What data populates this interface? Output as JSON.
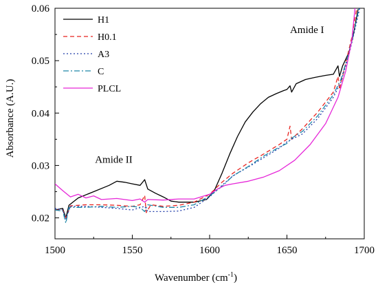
{
  "chart_data": {
    "type": "line",
    "xlabel": "Wavenumber (cm",
    "xlabel_sup": "-1",
    "xlabel_close": ")",
    "ylabel": "Absorbance (A.U.)",
    "xlim": [
      1500,
      1700
    ],
    "ylim": [
      0.016,
      0.06
    ],
    "xticks": [
      1500,
      1550,
      1600,
      1650,
      1700
    ],
    "xtick_labels": [
      "1500",
      "1550",
      "1600",
      "1650",
      "1700"
    ],
    "yticks": [
      0.02,
      0.03,
      0.04,
      0.05,
      0.06
    ],
    "ytick_labels": [
      "0.02",
      "0.03",
      "0.04",
      "0.05",
      "0.06"
    ],
    "legend_position": "top-left",
    "annotations": [
      {
        "text": "Amide II",
        "x": 1538,
        "y": 0.0305
      },
      {
        "text": "Amide I",
        "x": 1663,
        "y": 0.0553
      }
    ],
    "series": [
      {
        "name": "H1",
        "color": "#000000",
        "dash": "solid",
        "points": [
          [
            1500,
            0.0215
          ],
          [
            1505,
            0.0218
          ],
          [
            1507,
            0.02
          ],
          [
            1509,
            0.0224
          ],
          [
            1515,
            0.0238
          ],
          [
            1525,
            0.025
          ],
          [
            1535,
            0.0262
          ],
          [
            1540,
            0.027
          ],
          [
            1545,
            0.0268
          ],
          [
            1550,
            0.0265
          ],
          [
            1555,
            0.0262
          ],
          [
            1558,
            0.0273
          ],
          [
            1560,
            0.0255
          ],
          [
            1565,
            0.0247
          ],
          [
            1570,
            0.024
          ],
          [
            1575,
            0.0232
          ],
          [
            1580,
            0.023
          ],
          [
            1590,
            0.023
          ],
          [
            1598,
            0.0235
          ],
          [
            1603,
            0.0252
          ],
          [
            1608,
            0.0285
          ],
          [
            1613,
            0.0322
          ],
          [
            1618,
            0.0355
          ],
          [
            1623,
            0.0383
          ],
          [
            1628,
            0.0402
          ],
          [
            1633,
            0.0418
          ],
          [
            1638,
            0.043
          ],
          [
            1643,
            0.0437
          ],
          [
            1648,
            0.0443
          ],
          [
            1650,
            0.0445
          ],
          [
            1652,
            0.0452
          ],
          [
            1653,
            0.044
          ],
          [
            1656,
            0.0456
          ],
          [
            1662,
            0.0464
          ],
          [
            1668,
            0.0468
          ],
          [
            1675,
            0.0472
          ],
          [
            1680,
            0.0474
          ],
          [
            1683,
            0.049
          ],
          [
            1684,
            0.047
          ],
          [
            1686,
            0.049
          ],
          [
            1690,
            0.0515
          ],
          [
            1693,
            0.055
          ],
          [
            1696,
            0.0598
          ]
        ]
      },
      {
        "name": "H0.1",
        "color": "#e8231f",
        "dash": "6,4",
        "points": [
          [
            1500,
            0.0215
          ],
          [
            1505,
            0.0215
          ],
          [
            1507,
            0.02
          ],
          [
            1510,
            0.0223
          ],
          [
            1520,
            0.0225
          ],
          [
            1530,
            0.0225
          ],
          [
            1540,
            0.0224
          ],
          [
            1550,
            0.0222
          ],
          [
            1555,
            0.0225
          ],
          [
            1558,
            0.0243
          ],
          [
            1559,
            0.021
          ],
          [
            1562,
            0.0225
          ],
          [
            1570,
            0.0222
          ],
          [
            1580,
            0.0224
          ],
          [
            1590,
            0.023
          ],
          [
            1600,
            0.0245
          ],
          [
            1608,
            0.0268
          ],
          [
            1615,
            0.0285
          ],
          [
            1625,
            0.0305
          ],
          [
            1635,
            0.0322
          ],
          [
            1645,
            0.034
          ],
          [
            1650,
            0.035
          ],
          [
            1652,
            0.0375
          ],
          [
            1653,
            0.035
          ],
          [
            1660,
            0.037
          ],
          [
            1670,
            0.0402
          ],
          [
            1680,
            0.044
          ],
          [
            1683,
            0.047
          ],
          [
            1684,
            0.0445
          ],
          [
            1688,
            0.0495
          ],
          [
            1692,
            0.0545
          ],
          [
            1695,
            0.0598
          ]
        ]
      },
      {
        "name": "A3",
        "color": "#1e3aa8",
        "dash": "2,3",
        "points": [
          [
            1500,
            0.0218
          ],
          [
            1505,
            0.0215
          ],
          [
            1507,
            0.0198
          ],
          [
            1510,
            0.0222
          ],
          [
            1520,
            0.0222
          ],
          [
            1530,
            0.022
          ],
          [
            1540,
            0.0218
          ],
          [
            1550,
            0.0215
          ],
          [
            1558,
            0.0222
          ],
          [
            1560,
            0.0212
          ],
          [
            1565,
            0.0212
          ],
          [
            1570,
            0.0212
          ],
          [
            1580,
            0.0213
          ],
          [
            1590,
            0.022
          ],
          [
            1600,
            0.024
          ],
          [
            1608,
            0.0262
          ],
          [
            1615,
            0.028
          ],
          [
            1625,
            0.0297
          ],
          [
            1635,
            0.0315
          ],
          [
            1645,
            0.0333
          ],
          [
            1650,
            0.0345
          ],
          [
            1653,
            0.035
          ],
          [
            1660,
            0.036
          ],
          [
            1670,
            0.039
          ],
          [
            1680,
            0.043
          ],
          [
            1685,
            0.046
          ],
          [
            1690,
            0.051
          ],
          [
            1694,
            0.056
          ],
          [
            1697,
            0.06
          ]
        ]
      },
      {
        "name": "C",
        "color": "#1f86a8",
        "dash": "8,3,2,3",
        "points": [
          [
            1500,
            0.0215
          ],
          [
            1505,
            0.0213
          ],
          [
            1507,
            0.019
          ],
          [
            1509,
            0.022
          ],
          [
            1520,
            0.022
          ],
          [
            1530,
            0.0222
          ],
          [
            1540,
            0.022
          ],
          [
            1550,
            0.0222
          ],
          [
            1555,
            0.022
          ],
          [
            1558,
            0.0212
          ],
          [
            1560,
            0.0225
          ],
          [
            1570,
            0.022
          ],
          [
            1580,
            0.022
          ],
          [
            1590,
            0.0225
          ],
          [
            1600,
            0.0242
          ],
          [
            1608,
            0.026
          ],
          [
            1615,
            0.028
          ],
          [
            1625,
            0.0298
          ],
          [
            1635,
            0.0318
          ],
          [
            1645,
            0.0335
          ],
          [
            1650,
            0.0342
          ],
          [
            1653,
            0.0352
          ],
          [
            1660,
            0.0365
          ],
          [
            1670,
            0.0395
          ],
          [
            1680,
            0.0435
          ],
          [
            1685,
            0.0465
          ],
          [
            1690,
            0.0515
          ],
          [
            1694,
            0.0565
          ],
          [
            1697,
            0.0605
          ]
        ]
      },
      {
        "name": "PLCL",
        "color": "#e626d8",
        "dash": "solid",
        "points": [
          [
            1500,
            0.0265
          ],
          [
            1505,
            0.0252
          ],
          [
            1510,
            0.024
          ],
          [
            1515,
            0.0245
          ],
          [
            1520,
            0.0238
          ],
          [
            1525,
            0.0242
          ],
          [
            1530,
            0.0235
          ],
          [
            1540,
            0.0237
          ],
          [
            1550,
            0.0233
          ],
          [
            1555,
            0.0236
          ],
          [
            1558,
            0.023
          ],
          [
            1560,
            0.0235
          ],
          [
            1570,
            0.0234
          ],
          [
            1580,
            0.0236
          ],
          [
            1590,
            0.0236
          ],
          [
            1600,
            0.0245
          ],
          [
            1605,
            0.0255
          ],
          [
            1610,
            0.0262
          ],
          [
            1615,
            0.0265
          ],
          [
            1625,
            0.027
          ],
          [
            1635,
            0.0278
          ],
          [
            1645,
            0.029
          ],
          [
            1655,
            0.031
          ],
          [
            1665,
            0.034
          ],
          [
            1675,
            0.038
          ],
          [
            1683,
            0.043
          ],
          [
            1688,
            0.048
          ],
          [
            1692,
            0.054
          ],
          [
            1694,
            0.06
          ]
        ]
      }
    ]
  }
}
